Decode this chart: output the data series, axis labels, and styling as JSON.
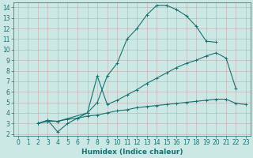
{
  "title": "",
  "xlabel": "Humidex (Indice chaleur)",
  "ylabel": "",
  "bg_color": "#cce8e5",
  "grid_color": "#c8aaaa",
  "line_color": "#1a7070",
  "xlim": [
    -0.5,
    23.5
  ],
  "ylim": [
    1.8,
    14.5
  ],
  "xticks": [
    0,
    1,
    2,
    3,
    4,
    5,
    6,
    7,
    8,
    9,
    10,
    11,
    12,
    13,
    14,
    15,
    16,
    17,
    18,
    19,
    20,
    21,
    22,
    23
  ],
  "yticks": [
    2,
    3,
    4,
    5,
    6,
    7,
    8,
    9,
    10,
    11,
    12,
    13,
    14
  ],
  "line1_x": [
    2,
    3,
    3,
    4,
    5,
    6,
    7,
    8,
    9,
    10,
    11,
    12,
    13,
    14,
    15,
    16,
    17,
    18,
    19,
    20
  ],
  "line1_y": [
    3.0,
    3.3,
    3.3,
    2.2,
    3.0,
    3.5,
    4.0,
    5.0,
    7.5,
    8.7,
    11.0,
    12.0,
    13.3,
    14.2,
    14.2,
    13.8,
    13.2,
    12.2,
    10.8,
    10.7
  ],
  "line2_x": [
    2,
    3,
    4,
    7,
    8,
    9,
    10,
    11,
    12,
    13,
    14,
    15,
    16,
    17,
    18,
    19,
    20,
    21,
    22
  ],
  "line2_y": [
    3.0,
    3.3,
    3.2,
    4.0,
    7.5,
    4.8,
    5.2,
    5.7,
    6.2,
    6.8,
    7.3,
    7.8,
    8.3,
    8.7,
    9.0,
    9.4,
    9.7,
    9.2,
    6.3
  ],
  "line3_x": [
    2,
    3,
    4,
    5,
    6,
    7,
    8,
    9,
    10,
    11,
    12,
    13,
    14,
    15,
    16,
    17,
    18,
    19,
    20,
    21,
    22,
    23
  ],
  "line3_y": [
    3.0,
    3.2,
    3.2,
    3.4,
    3.5,
    3.7,
    3.8,
    4.0,
    4.2,
    4.3,
    4.5,
    4.6,
    4.7,
    4.8,
    4.9,
    5.0,
    5.1,
    5.2,
    5.3,
    5.3,
    4.9,
    4.8
  ],
  "marker": "+",
  "markersize": 3,
  "linewidth": 0.8,
  "font_color": "#1a7070",
  "label_fontsize": 6.5,
  "tick_fontsize": 5.5
}
